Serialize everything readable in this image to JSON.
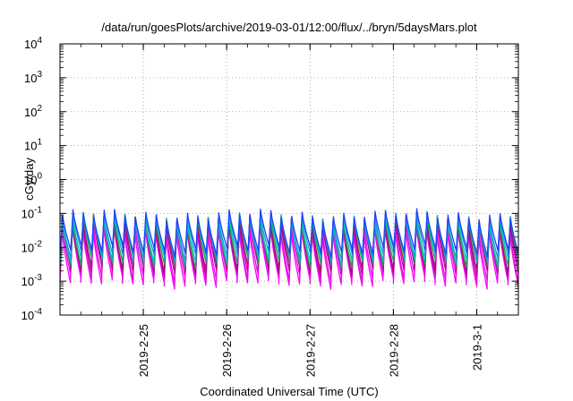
{
  "chart_data": {
    "type": "line",
    "title": "/data/run/goesPlots/archive/2019-03-01/12:00/flux/../bryn/5daysMars.plot",
    "xlabel": "Coordinated Universal Time (UTC)",
    "ylabel": "cGy/day",
    "yscale": "log",
    "ylim": [
      0.0001,
      10000
    ],
    "y_ticks": [
      {
        "value": 0.0001,
        "base": "10",
        "exp": "-4"
      },
      {
        "value": 0.001,
        "base": "10",
        "exp": "-3"
      },
      {
        "value": 0.01,
        "base": "10",
        "exp": "-2"
      },
      {
        "value": 0.1,
        "base": "10",
        "exp": "-1"
      },
      {
        "value": 1,
        "base": "10",
        "exp": "0"
      },
      {
        "value": 10,
        "base": "10",
        "exp": "1"
      },
      {
        "value": 100,
        "base": "10",
        "exp": "2"
      },
      {
        "value": 1000,
        "base": "10",
        "exp": "3"
      },
      {
        "value": 10000,
        "base": "10",
        "exp": "4"
      }
    ],
    "x_range": [
      "2019-02-24 00:00",
      "2019-03-01 12:00"
    ],
    "x_ticks": [
      "2019-2-25",
      "2019-2-26",
      "2019-2-27",
      "2019-2-28",
      "2019-3-1"
    ],
    "grid": true,
    "cycles_per_day": 8,
    "series": [
      {
        "color": "#ff00ff",
        "peak": 0.03,
        "trough": 0.0009
      },
      {
        "color": "#e010e0",
        "peak": 0.04,
        "trough": 0.0013
      },
      {
        "color": "#c000a0",
        "peak": 0.055,
        "trough": 0.002
      },
      {
        "color": "#a0107a",
        "peak": 0.06,
        "trough": 0.0025
      },
      {
        "color": "#20a050",
        "peak": 0.065,
        "trough": 0.0035
      },
      {
        "color": "#00c0c0",
        "peak": 0.07,
        "trough": 0.0045
      },
      {
        "color": "#10a0d0",
        "peak": 0.08,
        "trough": 0.006
      },
      {
        "color": "#2040ff",
        "peak": 0.09,
        "trough": 0.008
      }
    ]
  }
}
